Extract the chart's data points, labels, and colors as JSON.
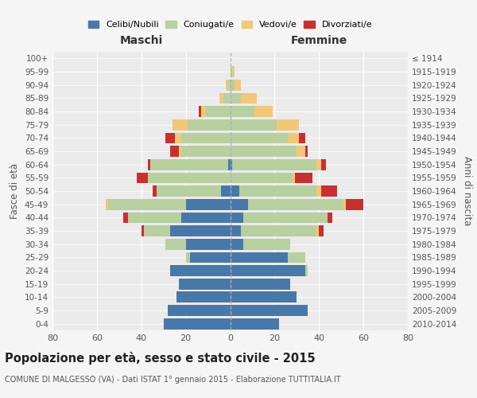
{
  "age_groups": [
    "0-4",
    "5-9",
    "10-14",
    "15-19",
    "20-24",
    "25-29",
    "30-34",
    "35-39",
    "40-44",
    "45-49",
    "50-54",
    "55-59",
    "60-64",
    "65-69",
    "70-74",
    "75-79",
    "80-84",
    "85-89",
    "90-94",
    "95-99",
    "100+"
  ],
  "birth_years": [
    "2010-2014",
    "2005-2009",
    "2000-2004",
    "1995-1999",
    "1990-1994",
    "1985-1989",
    "1980-1984",
    "1975-1979",
    "1970-1974",
    "1965-1969",
    "1960-1964",
    "1955-1959",
    "1950-1954",
    "1945-1949",
    "1940-1944",
    "1935-1939",
    "1930-1934",
    "1925-1929",
    "1920-1924",
    "1915-1919",
    "≤ 1914"
  ],
  "male": {
    "celibi": [
      30,
      28,
      24,
      23,
      27,
      18,
      20,
      27,
      22,
      20,
      4,
      0,
      1,
      0,
      0,
      0,
      0,
      0,
      0,
      0,
      0
    ],
    "coniugati": [
      0,
      0,
      0,
      0,
      0,
      2,
      9,
      12,
      24,
      35,
      29,
      37,
      35,
      22,
      22,
      19,
      11,
      3,
      1,
      0,
      0
    ],
    "vedovi": [
      0,
      0,
      0,
      0,
      0,
      0,
      0,
      0,
      0,
      1,
      0,
      0,
      0,
      1,
      3,
      7,
      2,
      2,
      1,
      0,
      0
    ],
    "divorziati": [
      0,
      0,
      0,
      0,
      0,
      0,
      0,
      1,
      2,
      0,
      2,
      5,
      1,
      4,
      4,
      0,
      1,
      0,
      0,
      0,
      0
    ]
  },
  "female": {
    "nubili": [
      22,
      35,
      30,
      27,
      34,
      26,
      6,
      5,
      6,
      8,
      4,
      0,
      1,
      0,
      0,
      0,
      0,
      0,
      0,
      0,
      0
    ],
    "coniugate": [
      0,
      0,
      0,
      0,
      1,
      8,
      21,
      34,
      38,
      43,
      35,
      28,
      38,
      30,
      26,
      21,
      11,
      5,
      2,
      1,
      0
    ],
    "vedove": [
      0,
      0,
      0,
      0,
      0,
      0,
      0,
      1,
      0,
      1,
      2,
      1,
      2,
      4,
      5,
      10,
      8,
      7,
      3,
      1,
      0
    ],
    "divorziate": [
      0,
      0,
      0,
      0,
      0,
      0,
      0,
      2,
      2,
      8,
      7,
      8,
      2,
      1,
      3,
      0,
      0,
      0,
      0,
      0,
      0
    ]
  },
  "colors": {
    "celibi": "#4878a8",
    "coniugati": "#b8cfa0",
    "vedovi": "#f0c878",
    "divorziati": "#c83030"
  },
  "xlim": 80,
  "title": "Popolazione per età, sesso e stato civile - 2015",
  "subtitle": "COMUNE DI MALGESSO (VA) - Dati ISTAT 1° gennaio 2015 - Elaborazione TUTTITALIA.IT",
  "xlabel_left": "Maschi",
  "xlabel_right": "Femmine",
  "ylabel_left": "Fasce di età",
  "ylabel_right": "Anni di nascita",
  "bg_color": "#f5f5f5",
  "plot_bg": "#ebebeb"
}
